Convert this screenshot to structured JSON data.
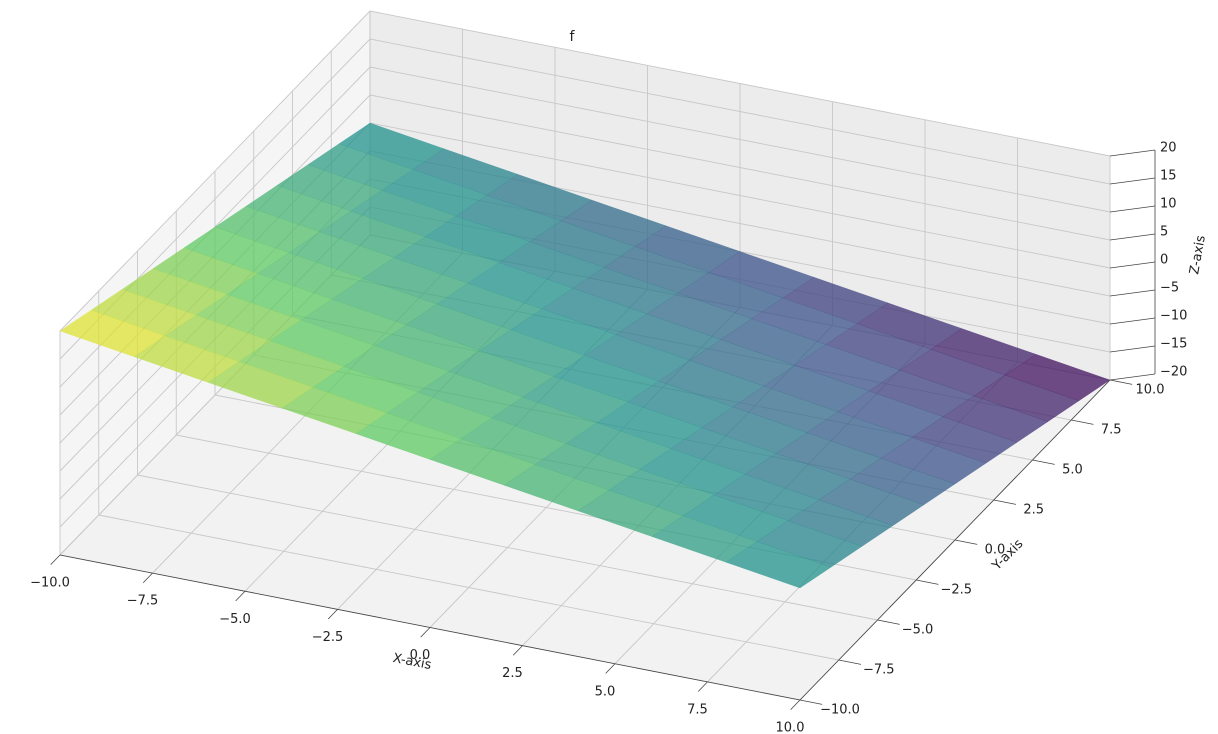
{
  "chart_data": {
    "type": "surface3d",
    "title": "f",
    "x_label": "X-axis",
    "y_label": "Y-axis",
    "z_label": "Z-axis",
    "x": [
      -10,
      -8,
      -6,
      -4,
      -2,
      0,
      2,
      4,
      6,
      8,
      10
    ],
    "y": [
      -10,
      -8,
      -6,
      -4,
      -2,
      0,
      2,
      4,
      6,
      8,
      10
    ],
    "z": [
      [
        20,
        18,
        16,
        14,
        12,
        10,
        8,
        6,
        4,
        2,
        0
      ],
      [
        18,
        16,
        14,
        12,
        10,
        8,
        6,
        4,
        2,
        0,
        -2
      ],
      [
        16,
        14,
        12,
        10,
        8,
        6,
        4,
        2,
        0,
        -2,
        -4
      ],
      [
        14,
        12,
        10,
        8,
        6,
        4,
        2,
        0,
        -2,
        -4,
        -6
      ],
      [
        12,
        10,
        8,
        6,
        4,
        2,
        0,
        -2,
        -4,
        -6,
        -8
      ],
      [
        10,
        8,
        6,
        4,
        2,
        0,
        -2,
        -4,
        -6,
        -8,
        -10
      ],
      [
        8,
        6,
        4,
        2,
        0,
        -2,
        -4,
        -6,
        -8,
        -10,
        -12
      ],
      [
        6,
        4,
        2,
        0,
        -2,
        -4,
        -6,
        -8,
        -10,
        -12,
        -14
      ],
      [
        4,
        2,
        0,
        -2,
        -4,
        -6,
        -8,
        -10,
        -12,
        -14,
        -16
      ],
      [
        2,
        0,
        -2,
        -4,
        -6,
        -8,
        -10,
        -12,
        -14,
        -16,
        -18
      ],
      [
        0,
        -2,
        -4,
        -6,
        -8,
        -10,
        -12,
        -14,
        -16,
        -18,
        -20
      ]
    ],
    "colormap": [
      "#440154",
      "#3b528b",
      "#21918c",
      "#5ec962",
      "#fde725"
    ],
    "alpha": 0.75,
    "xlim": [
      -10,
      10
    ],
    "ylim": [
      -10,
      10
    ],
    "zlim": [
      -20,
      20
    ],
    "xticks": [
      {
        "value": -10,
        "label": "−10.0"
      },
      {
        "value": -7.5,
        "label": "−7.5"
      },
      {
        "value": -5,
        "label": "−5.0"
      },
      {
        "value": -2.5,
        "label": "−2.5"
      },
      {
        "value": 0,
        "label": "0.0"
      },
      {
        "value": 2.5,
        "label": "2.5"
      },
      {
        "value": 5,
        "label": "5.0"
      },
      {
        "value": 7.5,
        "label": "7.5"
      },
      {
        "value": 10,
        "label": "10.0"
      }
    ],
    "yticks": [
      {
        "value": -10,
        "label": "−10.0"
      },
      {
        "value": -7.5,
        "label": "−7.5"
      },
      {
        "value": -5,
        "label": "−5.0"
      },
      {
        "value": -2.5,
        "label": "−2.5"
      },
      {
        "value": 0,
        "label": "0.0"
      },
      {
        "value": 2.5,
        "label": "2.5"
      },
      {
        "value": 5,
        "label": "5.0"
      },
      {
        "value": 7.5,
        "label": "7.5"
      },
      {
        "value": 10,
        "label": "10.0"
      }
    ],
    "zticks": [
      {
        "value": -20,
        "label": "−20"
      },
      {
        "value": -15,
        "label": "−15"
      },
      {
        "value": -10,
        "label": "−10"
      },
      {
        "value": -5,
        "label": "−5"
      },
      0,
      5,
      10,
      15,
      20
    ],
    "grid": true
  }
}
